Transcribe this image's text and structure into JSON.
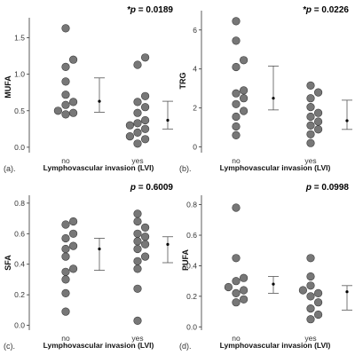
{
  "colors": {
    "dot_fill": "#777777",
    "dot_stroke": "#3a3a3a",
    "axis": "#333333",
    "errorbar": "#555555",
    "mean": "#000000"
  },
  "chart_data": [
    {
      "type": "scatter",
      "panel_label": "(a).",
      "ylabel": "MUFA",
      "xlabel": "Lymphovascular invasion (LVI)",
      "categories": [
        "no",
        "yes"
      ],
      "p_prefix": "*",
      "p_symbol": "p",
      "p_value": "= 0.0189",
      "ylim": [
        -0.05,
        1.75
      ],
      "yticks": [
        0.0,
        0.5,
        1.0,
        1.5
      ],
      "ytick_labels": [
        "0.0",
        "0.5",
        "1.0",
        "1.5"
      ],
      "series": [
        {
          "category": "no",
          "values": [
            1.63,
            1.2,
            1.1,
            0.9,
            0.72,
            0.62,
            0.58,
            0.5,
            0.47,
            0.45
          ]
        },
        {
          "category": "yes",
          "values": [
            1.23,
            1.13,
            0.7,
            0.62,
            0.55,
            0.47,
            0.37,
            0.33,
            0.3,
            0.25,
            0.2,
            0.15,
            0.11,
            0.05
          ]
        }
      ],
      "summary": [
        {
          "category": "no",
          "mean": 0.63,
          "lower": 0.48,
          "upper": 0.95
        },
        {
          "category": "yes",
          "mean": 0.37,
          "lower": 0.25,
          "upper": 0.63
        }
      ],
      "grid": false
    },
    {
      "type": "scatter",
      "panel_label": "(b).",
      "ylabel": "TRG",
      "xlabel": "Lymphovascular invasion (LVI)",
      "categories": [
        "no",
        "yes"
      ],
      "p_prefix": "*",
      "p_symbol": "p",
      "p_value": "= 0.0226",
      "ylim": [
        -0.2,
        6.9
      ],
      "yticks": [
        0,
        2,
        4,
        6
      ],
      "ytick_labels": [
        "0",
        "2",
        "4",
        "6"
      ],
      "series": [
        {
          "category": "no",
          "values": [
            6.45,
            5.45,
            4.45,
            4.1,
            2.9,
            2.75,
            2.5,
            2.2,
            1.85,
            1.55,
            1.05,
            0.6
          ]
        },
        {
          "category": "yes",
          "values": [
            3.15,
            2.8,
            2.5,
            2.05,
            1.75,
            1.55,
            1.3,
            1.1,
            0.9,
            0.65,
            0.2
          ]
        }
      ],
      "summary": [
        {
          "category": "no",
          "mean": 2.5,
          "lower": 1.9,
          "upper": 4.15
        },
        {
          "category": "yes",
          "mean": 1.35,
          "lower": 0.9,
          "upper": 2.4
        }
      ],
      "grid": false
    },
    {
      "type": "scatter",
      "panel_label": "(c).",
      "ylabel": "SFA",
      "xlabel": "Lymphovascular invasion (LVI)",
      "categories": [
        "no",
        "yes"
      ],
      "p_prefix": "",
      "p_symbol": "p",
      "p_value": "= 0.6009",
      "ylim": [
        -0.02,
        0.84
      ],
      "yticks": [
        0.0,
        0.2,
        0.4,
        0.6,
        0.8
      ],
      "ytick_labels": [
        "0.0",
        "0.2",
        "0.4",
        "0.6",
        "0.8"
      ],
      "series": [
        {
          "category": "no",
          "values": [
            0.68,
            0.66,
            0.6,
            0.57,
            0.52,
            0.5,
            0.45,
            0.37,
            0.35,
            0.3,
            0.21,
            0.09
          ]
        },
        {
          "category": "yes",
          "values": [
            0.73,
            0.68,
            0.64,
            0.6,
            0.58,
            0.55,
            0.53,
            0.5,
            0.45,
            0.42,
            0.37,
            0.24,
            0.03
          ]
        }
      ],
      "summary": [
        {
          "category": "no",
          "mean": 0.5,
          "lower": 0.36,
          "upper": 0.57
        },
        {
          "category": "yes",
          "mean": 0.53,
          "lower": 0.41,
          "upper": 0.58
        }
      ],
      "grid": false
    },
    {
      "type": "scatter",
      "panel_label": "(d).",
      "ylabel": "PUFA",
      "xlabel": "Lymphovascular invasion (LVI)",
      "categories": [
        "no",
        "yes"
      ],
      "p_prefix": "",
      "p_symbol": "p",
      "p_value": "= 0.0998",
      "ylim": [
        -0.01,
        0.85
      ],
      "yticks": [
        0.0,
        0.2,
        0.4,
        0.6,
        0.8
      ],
      "ytick_labels": [
        "0.0",
        "0.2",
        "0.4",
        "0.6",
        "0.8"
      ],
      "series": [
        {
          "category": "no",
          "values": [
            0.78,
            0.45,
            0.32,
            0.3,
            0.26,
            0.24,
            0.22,
            0.18,
            0.16
          ]
        },
        {
          "category": "yes",
          "values": [
            0.45,
            0.33,
            0.27,
            0.24,
            0.22,
            0.2,
            0.16,
            0.12,
            0.08,
            0.05
          ]
        }
      ],
      "summary": [
        {
          "category": "no",
          "mean": 0.28,
          "lower": 0.22,
          "upper": 0.33
        },
        {
          "category": "yes",
          "mean": 0.23,
          "lower": 0.11,
          "upper": 0.27
        }
      ],
      "grid": false
    }
  ]
}
